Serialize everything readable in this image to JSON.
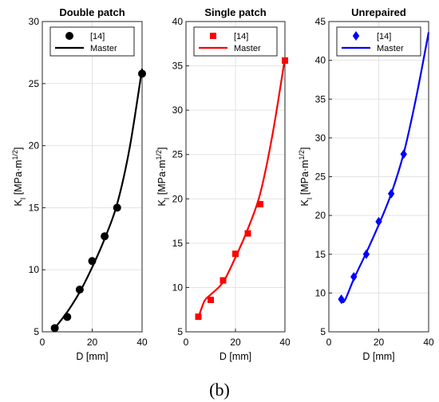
{
  "figure": {
    "caption": "(b)"
  },
  "chart_data": [
    {
      "type": "scatter",
      "title": "Double patch",
      "xlabel": "D [mm]",
      "ylabel_main": "K",
      "ylabel_sub": "I",
      "ylabel_unit": " [MPa·m",
      "ylabel_sup": "1/2",
      "ylabel_close": "]",
      "xlim": [
        0,
        40
      ],
      "ylim": [
        5,
        30
      ],
      "xticks": [
        "0",
        "20",
        "40"
      ],
      "yticks": [
        "5",
        "10",
        "15",
        "20",
        "25",
        "30"
      ],
      "grid": true,
      "legend_position": "top",
      "color": "#000000",
      "marker": "circle",
      "series": [
        {
          "name": "[14]",
          "kind": "points",
          "x": [
            5,
            10,
            15,
            20,
            25,
            30,
            40
          ],
          "y": [
            5.3,
            6.2,
            8.4,
            10.7,
            12.7,
            15.0,
            25.8
          ]
        },
        {
          "name": "Master",
          "kind": "line",
          "x": [
            5,
            10,
            15,
            20,
            25,
            30,
            35,
            40
          ],
          "y": [
            5.3,
            6.6,
            8.2,
            10.2,
            12.5,
            15.3,
            19.8,
            26.2
          ]
        }
      ]
    },
    {
      "type": "scatter",
      "title": "Single patch",
      "xlabel": "D [mm]",
      "ylabel_main": "K",
      "ylabel_sub": "I",
      "ylabel_unit": " [MPa·m",
      "ylabel_sup": "1/2",
      "ylabel_close": "]",
      "xlim": [
        0,
        40
      ],
      "ylim": [
        5,
        40
      ],
      "xticks": [
        "0",
        "20",
        "40"
      ],
      "yticks": [
        "5",
        "10",
        "15",
        "20",
        "25",
        "30",
        "35",
        "40"
      ],
      "grid": true,
      "legend_position": "top",
      "color": "#ff0000",
      "marker": "square",
      "series": [
        {
          "name": "[14]",
          "kind": "points",
          "x": [
            5,
            10,
            15,
            20,
            25,
            30,
            40
          ],
          "y": [
            6.7,
            8.6,
            10.8,
            13.8,
            16.1,
            19.4,
            35.6
          ]
        },
        {
          "name": "Master",
          "kind": "line",
          "x": [
            5,
            7.5,
            10,
            15,
            20,
            25,
            30,
            35,
            40
          ],
          "y": [
            6.6,
            8.5,
            9.2,
            10.6,
            13.4,
            16.6,
            20.6,
            27.3,
            35.9
          ]
        }
      ]
    },
    {
      "type": "scatter",
      "title": "Unrepaired",
      "xlabel": "D [mm]",
      "ylabel_main": "K",
      "ylabel_sub": "I",
      "ylabel_unit": " [MPa·m",
      "ylabel_sup": "1/2",
      "ylabel_close": "]",
      "xlim": [
        0,
        40
      ],
      "ylim": [
        5,
        45
      ],
      "xticks": [
        "0",
        "20",
        "40"
      ],
      "yticks": [
        "5",
        "10",
        "15",
        "20",
        "25",
        "30",
        "35",
        "40",
        "45"
      ],
      "grid": true,
      "legend_position": "top",
      "color": "#0000ff",
      "marker": "diamond",
      "series": [
        {
          "name": "[14]",
          "kind": "points",
          "x": [
            5,
            10,
            15,
            20,
            25,
            30
          ],
          "y": [
            9.2,
            12.1,
            15.0,
            19.2,
            22.8,
            27.9
          ]
        },
        {
          "name": "Master",
          "kind": "line",
          "x": [
            5,
            6.5,
            10,
            15,
            20,
            25,
            30,
            35,
            40
          ],
          "y": [
            8.8,
            9.1,
            11.8,
            15.2,
            18.8,
            22.8,
            28.0,
            35.2,
            43.6
          ]
        }
      ]
    }
  ]
}
